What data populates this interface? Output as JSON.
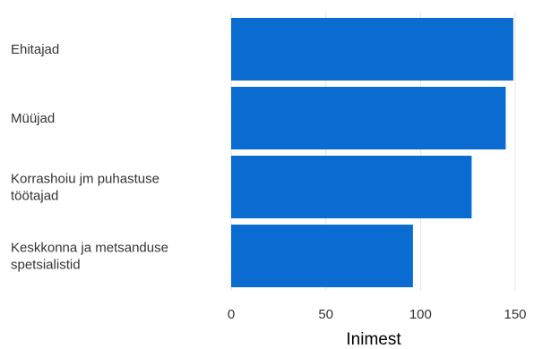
{
  "chart_data": {
    "type": "bar",
    "orientation": "horizontal",
    "categories": [
      [
        "Ehitajad"
      ],
      [
        "Müüjad"
      ],
      [
        "Korrashoiu jm puhastuse",
        "töötajad"
      ],
      [
        "Keskkonna ja metsanduse",
        "spetsialistid"
      ]
    ],
    "values": [
      149,
      145,
      127,
      96
    ],
    "xlabel": "Inimest",
    "xlim": [
      0,
      150
    ],
    "xticks": [
      0,
      50,
      100,
      150
    ],
    "grid": true,
    "colors": {
      "bar": "#0a6bd1"
    }
  }
}
